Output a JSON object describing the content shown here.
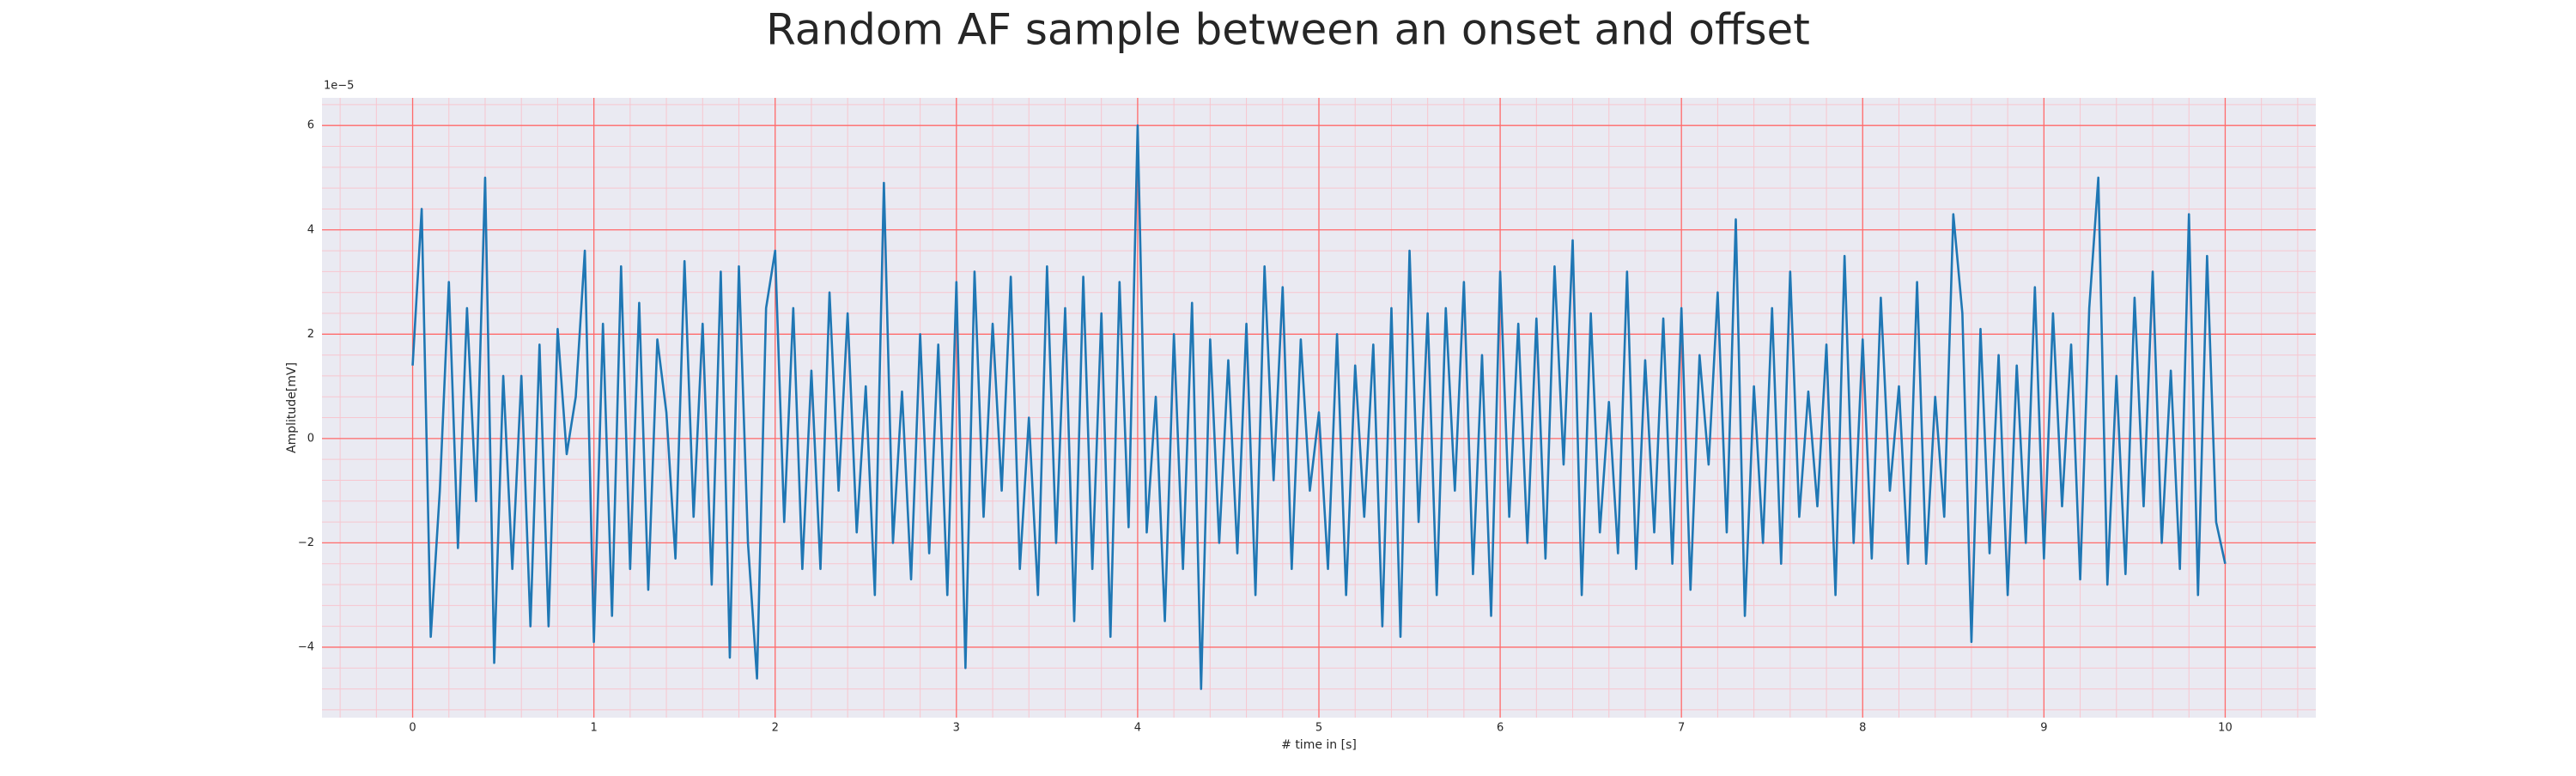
{
  "chart_data": {
    "type": "line",
    "title": "Random AF sample between an onset and offset",
    "x_label": "# time in [s]",
    "y_label": "Amplitude[mV]",
    "y_offset_label": "1e−5",
    "color": "#1f77b4",
    "background": "#eaeaf2",
    "grid": true,
    "grid_color": "#ff6b6b",
    "minor_grid": true,
    "minor_grid_color": "#f7c6cf",
    "xlim": [
      -0.5,
      10.5
    ],
    "ylim": [
      -5.35,
      6.53
    ],
    "xticks": [
      0,
      1,
      2,
      3,
      4,
      5,
      6,
      7,
      8,
      9,
      10
    ],
    "yticks": [
      {
        "value": -4,
        "label": "−4"
      },
      {
        "value": -2,
        "label": "−2"
      },
      0,
      2,
      4,
      6
    ],
    "x": [
      0,
      0.05,
      0.1,
      0.15,
      0.2,
      0.25,
      0.3,
      0.35,
      0.4,
      0.45,
      0.5,
      0.55,
      0.6,
      0.65,
      0.7,
      0.75,
      0.8,
      0.85,
      0.9,
      0.95,
      1,
      1.05,
      1.1,
      1.15,
      1.2,
      1.25,
      1.3,
      1.35,
      1.4,
      1.45,
      1.5,
      1.55,
      1.6,
      1.65,
      1.7,
      1.75,
      1.8,
      1.85,
      1.9,
      1.95,
      2,
      2.05,
      2.1,
      2.15,
      2.2,
      2.25,
      2.3,
      2.35,
      2.4,
      2.45,
      2.5,
      2.55,
      2.6,
      2.65,
      2.7,
      2.75,
      2.8,
      2.85,
      2.9,
      2.95,
      3,
      3.05,
      3.1,
      3.15,
      3.2,
      3.25,
      3.3,
      3.35,
      3.4,
      3.45,
      3.5,
      3.55,
      3.6,
      3.65,
      3.7,
      3.75,
      3.8,
      3.85,
      3.9,
      3.95,
      4,
      4.05,
      4.1,
      4.15,
      4.2,
      4.25,
      4.3,
      4.35,
      4.4,
      4.45,
      4.5,
      4.55,
      4.6,
      4.65,
      4.7,
      4.75,
      4.8,
      4.85,
      4.9,
      4.95,
      5,
      5.05,
      5.1,
      5.15,
      5.2,
      5.25,
      5.3,
      5.35,
      5.4,
      5.45,
      5.5,
      5.55,
      5.6,
      5.65,
      5.7,
      5.75,
      5.8,
      5.85,
      5.9,
      5.95,
      6,
      6.05,
      6.1,
      6.15,
      6.2,
      6.25,
      6.3,
      6.35,
      6.4,
      6.45,
      6.5,
      6.55,
      6.6,
      6.65,
      6.7,
      6.75,
      6.8,
      6.85,
      6.9,
      6.95,
      7,
      7.05,
      7.1,
      7.15,
      7.2,
      7.25,
      7.3,
      7.35,
      7.4,
      7.45,
      7.5,
      7.55,
      7.6,
      7.65,
      7.7,
      7.75,
      7.8,
      7.85,
      7.9,
      7.95,
      8,
      8.05,
      8.1,
      8.15,
      8.2,
      8.25,
      8.3,
      8.35,
      8.4,
      8.45,
      8.5,
      8.55,
      8.6,
      8.65,
      8.7,
      8.75,
      8.8,
      8.85,
      8.9,
      8.95,
      9,
      9.05,
      9.1,
      9.15,
      9.2,
      9.25,
      9.3,
      9.35,
      9.4,
      9.45,
      9.5,
      9.55,
      9.6,
      9.65,
      9.7,
      9.75,
      9.8,
      9.85,
      9.9,
      9.95,
      10
    ],
    "values": [
      1.4,
      4.4,
      -3.8,
      -1.0,
      3.0,
      -2.1,
      2.5,
      -1.2,
      5.0,
      -4.3,
      1.2,
      -2.5,
      1.2,
      -3.6,
      1.8,
      -3.6,
      2.1,
      -0.3,
      0.8,
      3.6,
      -3.9,
      2.2,
      -3.4,
      3.3,
      -2.5,
      2.6,
      -2.9,
      1.9,
      0.5,
      -2.3,
      3.4,
      -1.5,
      2.2,
      -2.8,
      3.2,
      -4.2,
      3.3,
      -2.0,
      -4.6,
      2.5,
      3.6,
      -1.6,
      2.5,
      -2.5,
      1.3,
      -2.5,
      2.8,
      -1.0,
      2.4,
      -1.8,
      1.0,
      -3.0,
      4.9,
      -2.0,
      0.9,
      -2.7,
      2.0,
      -2.2,
      1.8,
      -3.0,
      3.0,
      -4.4,
      3.2,
      -1.5,
      2.2,
      -1.0,
      3.1,
      -2.5,
      0.4,
      -3.0,
      3.3,
      -2.0,
      2.5,
      -3.5,
      3.1,
      -2.5,
      2.4,
      -3.8,
      3.0,
      -1.7,
      6.0,
      -1.8,
      0.8,
      -3.5,
      2.0,
      -2.5,
      2.6,
      -4.8,
      1.9,
      -2.0,
      1.5,
      -2.2,
      2.2,
      -3.0,
      3.3,
      -0.8,
      2.9,
      -2.5,
      1.9,
      -1.0,
      0.5,
      -2.5,
      2.0,
      -3.0,
      1.4,
      -1.5,
      1.8,
      -3.6,
      2.5,
      -3.8,
      3.6,
      -1.6,
      2.4,
      -3.0,
      2.5,
      -1.0,
      3.0,
      -2.6,
      1.6,
      -3.4,
      3.2,
      -1.5,
      2.2,
      -2.0,
      2.3,
      -2.3,
      3.3,
      -0.5,
      3.8,
      -3.0,
      2.4,
      -1.8,
      0.7,
      -2.2,
      3.2,
      -2.5,
      1.5,
      -1.8,
      2.3,
      -2.4,
      2.5,
      -2.9,
      1.6,
      -0.5,
      2.8,
      -1.8,
      4.2,
      -3.4,
      1.0,
      -2.0,
      2.5,
      -2.4,
      3.2,
      -1.5,
      0.9,
      -1.3,
      1.8,
      -3.0,
      3.5,
      -2.0,
      1.9,
      -2.3,
      2.7,
      -1.0,
      1.0,
      -2.4,
      3.0,
      -2.4,
      0.8,
      -1.5,
      4.3,
      2.4,
      -3.9,
      2.1,
      -2.2,
      1.6,
      -3.0,
      1.4,
      -2.0,
      2.9,
      -2.3,
      2.4,
      -1.3,
      1.8,
      -2.7,
      2.5,
      5.0,
      -2.8,
      1.2,
      -2.6,
      2.7,
      -1.3,
      3.2,
      -2.0,
      1.3,
      -2.5,
      4.3,
      -3.0,
      3.5,
      -1.6,
      -2.4
    ]
  }
}
